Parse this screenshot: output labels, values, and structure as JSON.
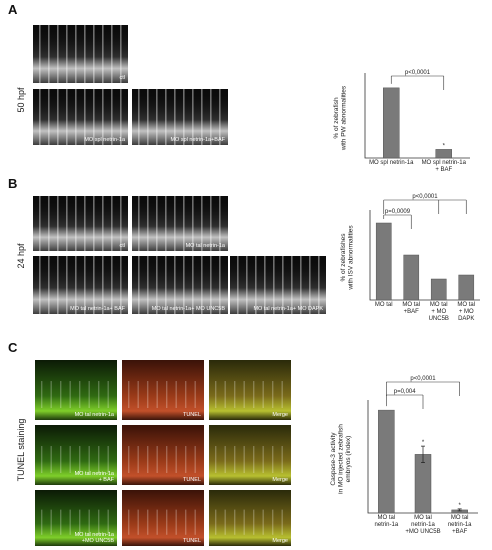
{
  "panels": [
    {
      "label": "A",
      "stage": "50 hpf",
      "images": [
        "ctl",
        "MO spl netrin-1a",
        "MO spl netrin-1a+BAF"
      ]
    },
    {
      "label": "B",
      "stage": "24 hpf",
      "images": [
        "ctl",
        "MO tal netrin-1a",
        "MO tal netrin-1a+ BAF",
        "MO tal netrin-1a+ MO UNC5B",
        "MO tal netrin-1a+ MO DAPK"
      ]
    },
    {
      "label": "C",
      "stage": "TUNEL staining",
      "images": [
        "MO tal netrin-1a",
        "TUNEL",
        "Merge",
        "MO tal netrin-1a\n+ BAF",
        "TUNEL",
        "Merge",
        "MO tal netrin-1a\n+MO UNC5B",
        "TUNEL",
        "Merge"
      ]
    }
  ],
  "chart_data": [
    {
      "type": "bar",
      "y_label": "% of zebrafish\nwith PW abnormalities",
      "categories": [
        "MO spl netrin-1a",
        "MO spl netrin-1a\n+ BAF"
      ],
      "values": [
        57,
        7
      ],
      "markers": [
        null,
        "*"
      ],
      "color": "#7a7a7a",
      "ylim": [
        0,
        65
      ],
      "annotations": [
        "p<0,0001"
      ]
    },
    {
      "type": "bar",
      "y_label": "% of zebrafishes\nwith ISV abnormalities",
      "categories": [
        "MO tal",
        "MO tal\n+BAF",
        "MO tal\n+ MO\nUNC5B",
        "MO tal\n+ MO\nDAPK"
      ],
      "values": [
        77,
        45,
        21,
        25
      ],
      "color": "#7a7a7a",
      "ylim": [
        0,
        85
      ],
      "annotations": [
        "p=0,0009",
        "p<0,0001"
      ]
    },
    {
      "type": "bar",
      "y_label": "Caspase-3 activity\nin MO injected zebrafish\nembryos (index)",
      "categories": [
        "MO tal\nnetrin-1a",
        "MO tal\nnetrin-1a\n+MO UNC5B",
        "MO tal\nnetrin-1a\n+BAF"
      ],
      "values": [
        1.0,
        0.57,
        0.03
      ],
      "errors": [
        null,
        0.08,
        0.01
      ],
      "markers": [
        null,
        "*",
        "*"
      ],
      "color": "#7a7a7a",
      "ylim": [
        0,
        1.05
      ],
      "annotations": [
        "p=0,004",
        "p<0,0001"
      ]
    }
  ]
}
